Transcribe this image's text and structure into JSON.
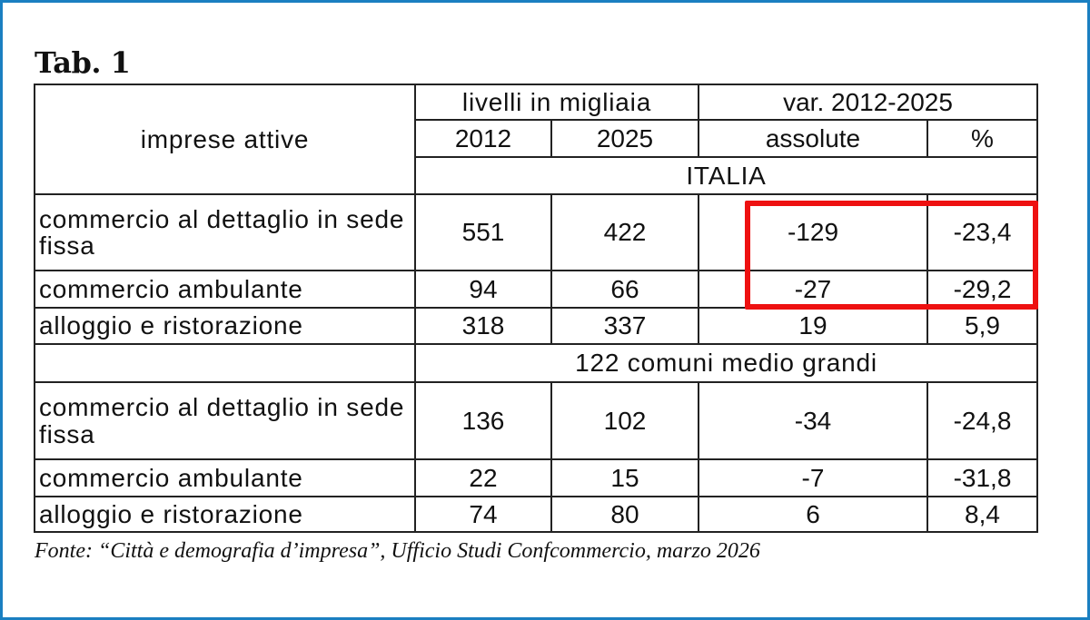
{
  "title": "Tab. 1",
  "table": {
    "row_header": "imprese attive",
    "group_levels": "livelli in migliaia",
    "group_var": "var. 2012-2025",
    "col_2012": "2012",
    "col_2025": "2025",
    "col_abs": "assolute",
    "col_pct": "%",
    "sections": [
      {
        "name": "ITALIA",
        "rows": [
          {
            "label": "commercio al dettaglio in sede fissa",
            "v2012": "551",
            "v2025": "422",
            "abs": "-129",
            "pct": "-23,4"
          },
          {
            "label": "commercio ambulante",
            "v2012": "94",
            "v2025": "66",
            "abs": "-27",
            "pct": "-29,2"
          },
          {
            "label": "alloggio e ristorazione",
            "v2012": "318",
            "v2025": "337",
            "abs": "19",
            "pct": "5,9"
          }
        ]
      },
      {
        "name": "122 comuni medio grandi",
        "rows": [
          {
            "label": "commercio al dettaglio in sede fissa",
            "v2012": "136",
            "v2025": "102",
            "abs": "-34",
            "pct": "-24,8"
          },
          {
            "label": "commercio ambulante",
            "v2012": "22",
            "v2025": "15",
            "abs": "-7",
            "pct": "-31,8"
          },
          {
            "label": "alloggio e ristorazione",
            "v2012": "74",
            "v2025": "80",
            "abs": "6",
            "pct": "8,4"
          }
        ]
      }
    ]
  },
  "source": "Fonte: “Città e demografia d’impresa”, Ufficio Studi Confcommercio, marzo 2026",
  "colors": {
    "frame": "#1a7fc1",
    "highlight": "#ee1111"
  }
}
